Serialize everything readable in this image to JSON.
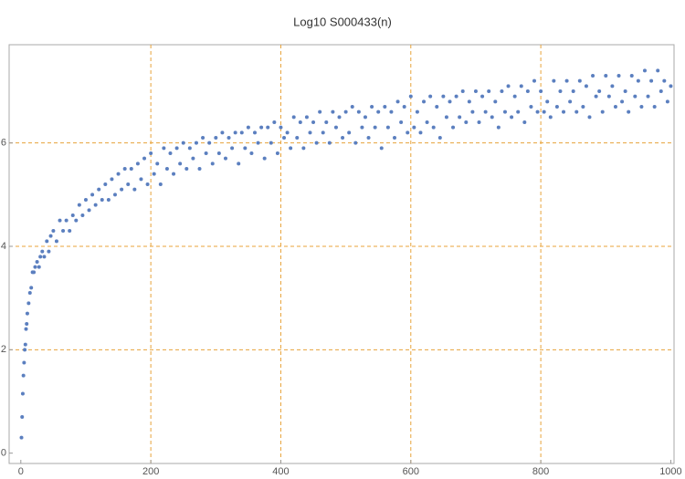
{
  "chart_data": {
    "type": "scatter",
    "title": "Log10 S000433(n)",
    "color": "#5b7fbf",
    "x": [
      1,
      2,
      3,
      4,
      5,
      6,
      7,
      8,
      9,
      10,
      12,
      14,
      16,
      18,
      20,
      22,
      25,
      28,
      30,
      33,
      36,
      40,
      43,
      46,
      50,
      55,
      60,
      65,
      70,
      75,
      80,
      85,
      90,
      95,
      100,
      105,
      110,
      115,
      120,
      125,
      130,
      135,
      140,
      145,
      150,
      155,
      160,
      165,
      170,
      175,
      180,
      185,
      190,
      195,
      200,
      205,
      210,
      215,
      220,
      225,
      230,
      235,
      240,
      245,
      250,
      255,
      260,
      265,
      270,
      275,
      280,
      285,
      290,
      295,
      300,
      305,
      310,
      315,
      320,
      325,
      330,
      335,
      340,
      345,
      350,
      355,
      360,
      365,
      370,
      375,
      380,
      385,
      390,
      395,
      400,
      405,
      410,
      415,
      420,
      425,
      430,
      435,
      440,
      445,
      450,
      455,
      460,
      465,
      470,
      475,
      480,
      485,
      490,
      495,
      500,
      505,
      510,
      515,
      520,
      525,
      530,
      535,
      540,
      545,
      550,
      555,
      560,
      565,
      570,
      575,
      580,
      585,
      590,
      595,
      600,
      605,
      610,
      615,
      620,
      625,
      630,
      635,
      640,
      645,
      650,
      655,
      660,
      665,
      670,
      675,
      680,
      685,
      690,
      695,
      700,
      705,
      710,
      715,
      720,
      725,
      730,
      735,
      740,
      745,
      750,
      755,
      760,
      765,
      770,
      775,
      780,
      785,
      790,
      795,
      800,
      805,
      810,
      815,
      820,
      825,
      830,
      835,
      840,
      845,
      850,
      855,
      860,
      865,
      870,
      875,
      880,
      885,
      890,
      895,
      900,
      905,
      910,
      915,
      920,
      925,
      930,
      935,
      940,
      945,
      950,
      955,
      960,
      965,
      970,
      975,
      980,
      985,
      990,
      995,
      1000
    ],
    "values": [
      0.3,
      0.7,
      1.15,
      1.5,
      1.75,
      2.0,
      2.1,
      2.4,
      2.5,
      2.7,
      2.9,
      3.1,
      3.2,
      3.5,
      3.5,
      3.6,
      3.7,
      3.6,
      3.8,
      3.9,
      3.8,
      4.1,
      3.9,
      4.2,
      4.3,
      4.1,
      4.5,
      4.3,
      4.5,
      4.3,
      4.6,
      4.5,
      4.8,
      4.6,
      4.9,
      4.7,
      5.0,
      4.8,
      5.1,
      4.9,
      5.2,
      4.9,
      5.3,
      5.0,
      5.4,
      5.1,
      5.5,
      5.2,
      5.5,
      5.1,
      5.6,
      5.3,
      5.7,
      5.2,
      5.8,
      5.4,
      5.6,
      5.2,
      5.9,
      5.5,
      5.8,
      5.4,
      5.9,
      5.6,
      6.0,
      5.5,
      5.9,
      5.7,
      6.0,
      5.5,
      6.1,
      5.8,
      6.0,
      5.6,
      6.1,
      5.8,
      6.2,
      5.7,
      6.1,
      5.9,
      6.2,
      5.6,
      6.2,
      5.9,
      6.3,
      5.8,
      6.2,
      6.0,
      6.3,
      5.7,
      6.3,
      6.0,
      6.4,
      5.8,
      6.3,
      6.1,
      6.2,
      5.9,
      6.5,
      6.1,
      6.4,
      5.9,
      6.5,
      6.2,
      6.4,
      6.0,
      6.6,
      6.2,
      6.4,
      6.0,
      6.6,
      6.3,
      6.5,
      6.1,
      6.6,
      6.2,
      6.7,
      6.0,
      6.6,
      6.3,
      6.5,
      6.1,
      6.7,
      6.3,
      6.6,
      5.9,
      6.7,
      6.3,
      6.6,
      6.1,
      6.8,
      6.4,
      6.7,
      6.2,
      6.9,
      6.3,
      6.6,
      6.2,
      6.8,
      6.4,
      6.9,
      6.3,
      6.7,
      6.1,
      6.9,
      6.5,
      6.8,
      6.3,
      6.9,
      6.5,
      7.0,
      6.4,
      6.8,
      6.6,
      7.0,
      6.4,
      6.9,
      6.6,
      7.0,
      6.5,
      6.8,
      6.3,
      7.0,
      6.6,
      7.1,
      6.5,
      6.9,
      6.6,
      7.1,
      6.4,
      7.0,
      6.7,
      7.2,
      6.6,
      7.0,
      6.6,
      6.8,
      6.5,
      7.2,
      6.7,
      7.0,
      6.6,
      7.2,
      6.8,
      7.0,
      6.6,
      7.2,
      6.7,
      7.1,
      6.5,
      7.3,
      6.9,
      7.0,
      6.6,
      7.3,
      6.9,
      7.1,
      6.7,
      7.3,
      6.8,
      7.0,
      6.6,
      7.3,
      6.9,
      7.2,
      6.7,
      7.4,
      6.9,
      7.2,
      6.7,
      7.4,
      7.0,
      7.2,
      6.8,
      7.1
    ],
    "xlim": [
      -18,
      1005
    ],
    "ylim": [
      -0.2,
      7.9
    ],
    "xticks": [
      0,
      200,
      400,
      600,
      800,
      1000
    ],
    "yticks": [
      0,
      2,
      4,
      6
    ],
    "grid": true
  }
}
